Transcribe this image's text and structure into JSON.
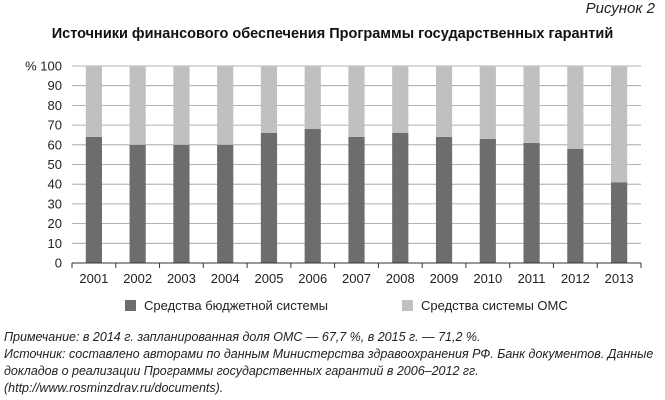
{
  "figure_label": "Рисунок 2",
  "chart_data": {
    "type": "bar",
    "stacked": true,
    "title": "Источники финансового обеспечения Программы государственных гарантий",
    "y_unit_label": "%",
    "ylim": [
      0,
      100
    ],
    "y_ticks": [
      0,
      10,
      20,
      30,
      40,
      50,
      60,
      70,
      80,
      90,
      100
    ],
    "categories": [
      "2001",
      "2002",
      "2003",
      "2004",
      "2005",
      "2006",
      "2007",
      "2008",
      "2009",
      "2010",
      "2011",
      "2012",
      "2013"
    ],
    "series": [
      {
        "name": "Средства бюджетной системы",
        "color": "#6d6d6d",
        "values": [
          64,
          60,
          60,
          60,
          66,
          68,
          64,
          66,
          64,
          63,
          61,
          58,
          41
        ]
      },
      {
        "name": "Средства системы ОМС",
        "color": "#c0c0c0",
        "values": [
          36,
          40,
          40,
          40,
          34,
          32,
          36,
          34,
          36,
          37,
          39,
          42,
          59
        ]
      }
    ],
    "grid": "horizontal",
    "legend_position": "bottom"
  },
  "notes": {
    "note": "Примечание: в 2014 г. запланированная доля ОМС — 67,7 %, в 2015 г. — 71,2 %.",
    "source": "Источник: составлено авторами по данным Министерства здравоохранения РФ. Банк документов. Данные докладов о реализации Программы государственных гарантий в 2006–2012 гг. (http://www.rosminzdrav.ru/documents)."
  }
}
